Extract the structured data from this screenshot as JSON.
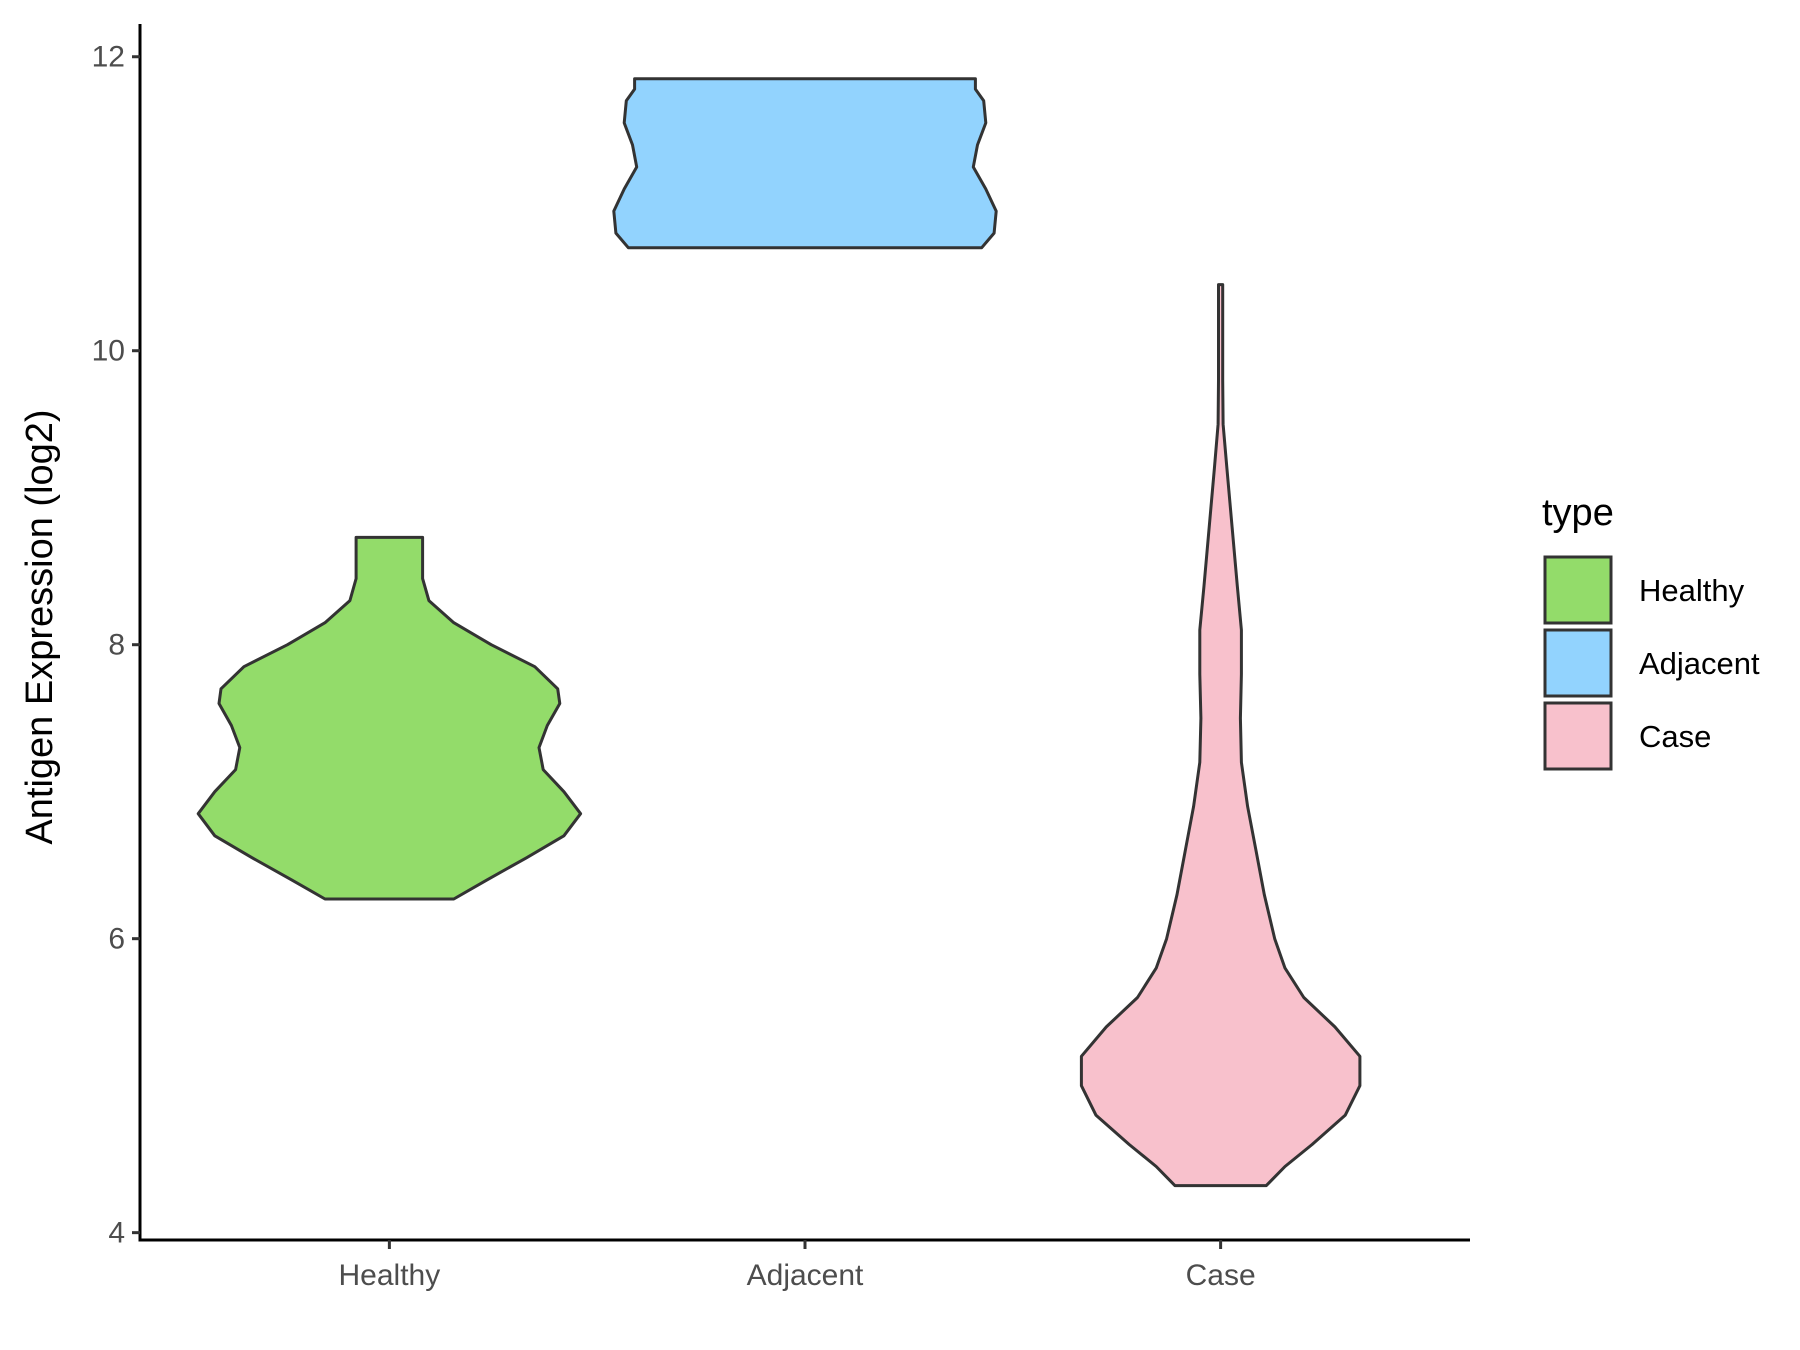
{
  "chart_data": {
    "type": "violin",
    "title": "",
    "xlabel": "",
    "ylabel": "Antigen Expression (log2)",
    "ylim": [
      3.95,
      12.25
    ],
    "yticks": [
      4,
      6,
      8,
      10,
      12
    ],
    "categories": [
      "Healthy",
      "Adjacent",
      "Case"
    ],
    "grid": false,
    "legend": {
      "title": "type",
      "position": "right",
      "entries": [
        "Healthy",
        "Adjacent",
        "Case"
      ]
    },
    "series": [
      {
        "name": "Healthy",
        "color": "#93DC6A",
        "range": [
          6.27,
          8.73
        ],
        "profile": [
          [
            6.27,
            0.31
          ],
          [
            6.4,
            0.47
          ],
          [
            6.55,
            0.66
          ],
          [
            6.7,
            0.84
          ],
          [
            6.85,
            0.92
          ],
          [
            7.0,
            0.84
          ],
          [
            7.15,
            0.74
          ],
          [
            7.3,
            0.72
          ],
          [
            7.45,
            0.76
          ],
          [
            7.6,
            0.82
          ],
          [
            7.7,
            0.81
          ],
          [
            7.85,
            0.7
          ],
          [
            8.0,
            0.49
          ],
          [
            8.15,
            0.31
          ],
          [
            8.3,
            0.19
          ],
          [
            8.45,
            0.16
          ],
          [
            8.6,
            0.16
          ],
          [
            8.73,
            0.16
          ]
        ]
      },
      {
        "name": "Adjacent",
        "color": "#92D3FE",
        "range": [
          10.7,
          11.85
        ],
        "profile": [
          [
            10.7,
            0.85
          ],
          [
            10.8,
            0.91
          ],
          [
            10.95,
            0.92
          ],
          [
            11.1,
            0.87
          ],
          [
            11.25,
            0.81
          ],
          [
            11.4,
            0.83
          ],
          [
            11.55,
            0.87
          ],
          [
            11.7,
            0.86
          ],
          [
            11.78,
            0.82
          ],
          [
            11.85,
            0.82
          ]
        ]
      },
      {
        "name": "Case",
        "color": "#F8C1CC",
        "range": [
          4.32,
          10.45
        ],
        "profile": [
          [
            4.32,
            0.22
          ],
          [
            4.45,
            0.31
          ],
          [
            4.6,
            0.44
          ],
          [
            4.8,
            0.6
          ],
          [
            5.0,
            0.67
          ],
          [
            5.2,
            0.67
          ],
          [
            5.4,
            0.55
          ],
          [
            5.6,
            0.4
          ],
          [
            5.8,
            0.31
          ],
          [
            6.0,
            0.26
          ],
          [
            6.3,
            0.21
          ],
          [
            6.6,
            0.17
          ],
          [
            6.9,
            0.13
          ],
          [
            7.2,
            0.1
          ],
          [
            7.5,
            0.095
          ],
          [
            7.8,
            0.1
          ],
          [
            8.1,
            0.1
          ],
          [
            8.4,
            0.08
          ],
          [
            8.8,
            0.055
          ],
          [
            9.2,
            0.03
          ],
          [
            9.5,
            0.012
          ],
          [
            9.8,
            0.01
          ],
          [
            10.1,
            0.01
          ],
          [
            10.45,
            0.01
          ]
        ]
      }
    ]
  }
}
